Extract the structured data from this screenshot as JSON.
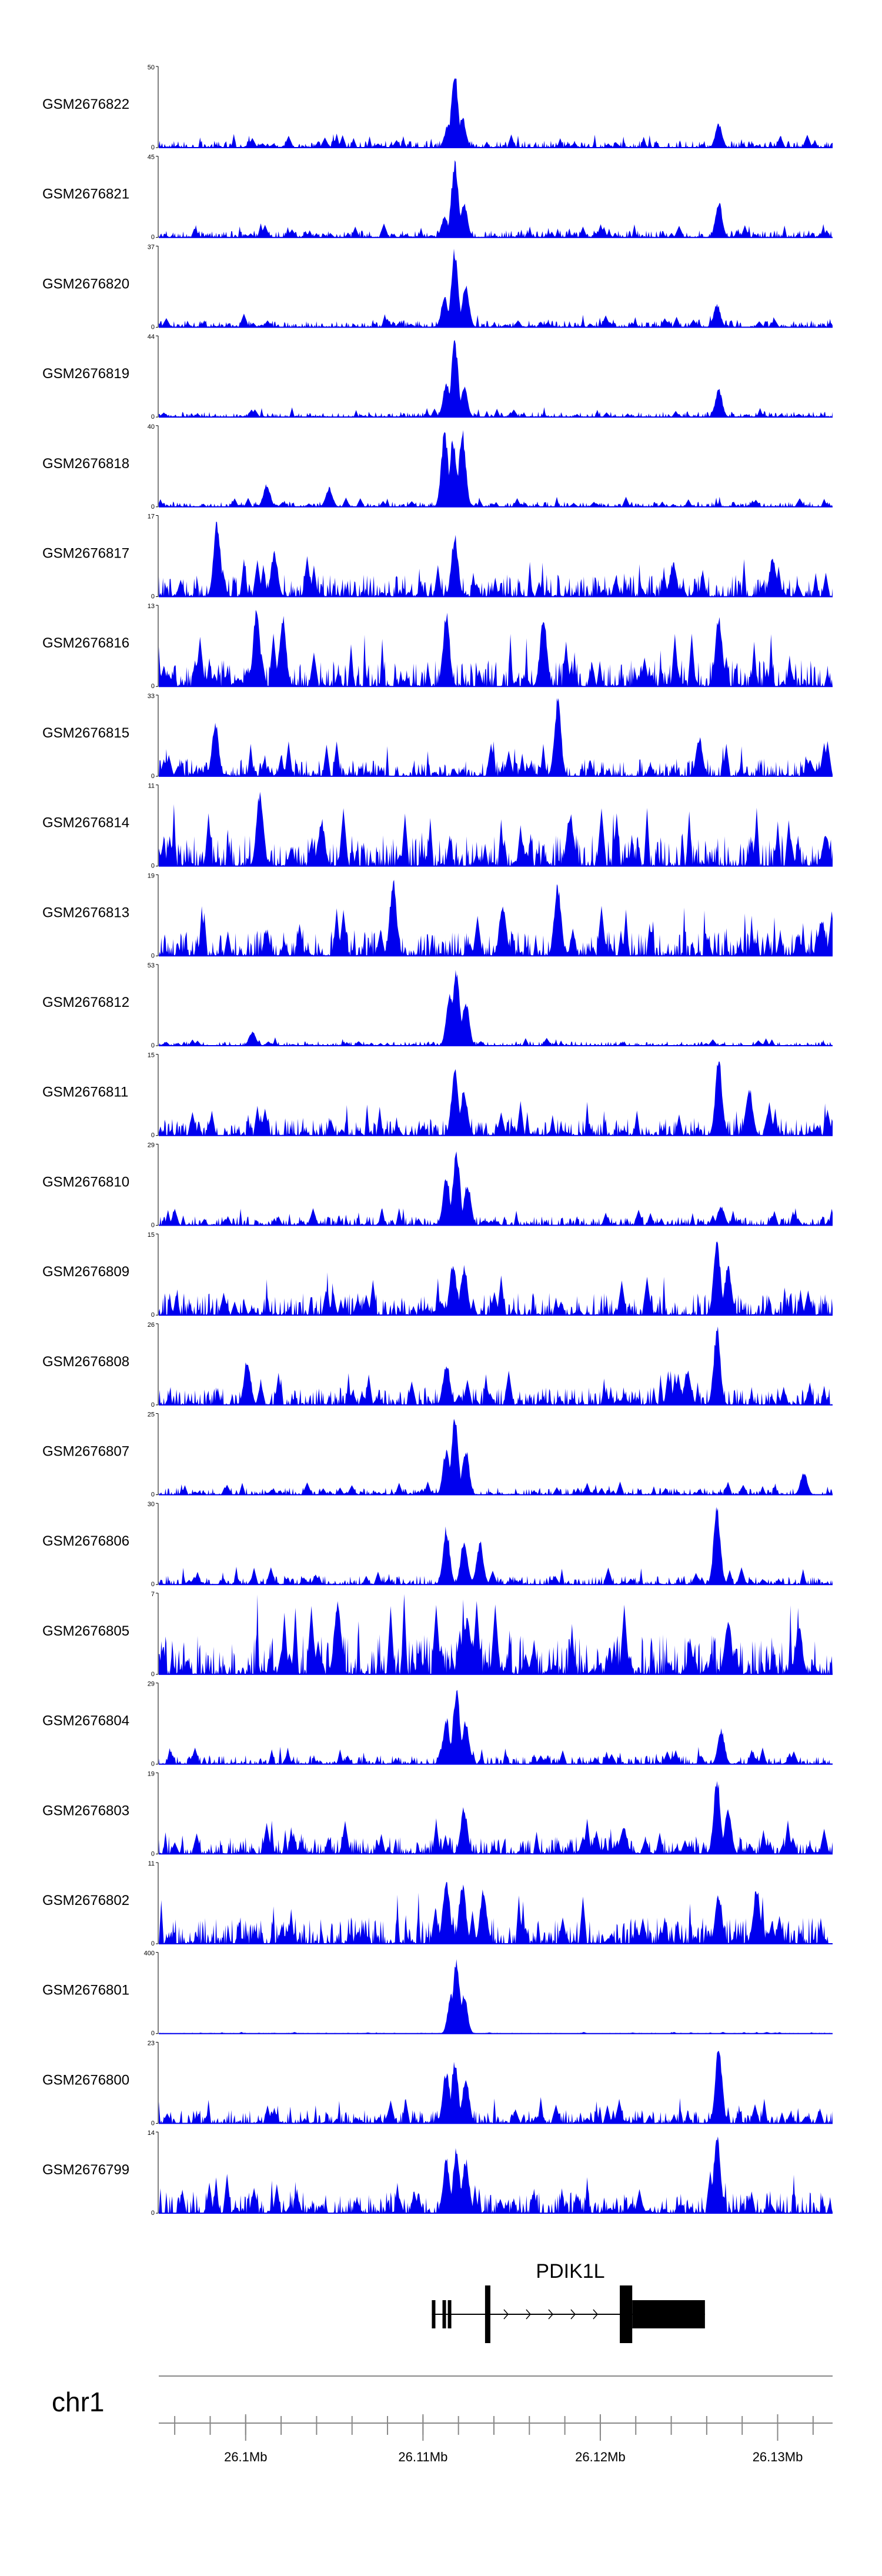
{
  "chart_data": {
    "type": "area",
    "title": "",
    "xlabel": "",
    "ylabel": "",
    "color": "#0000ee",
    "xlim_mb": [
      26.0951,
      26.1331
    ],
    "tracks": [
      {
        "name": "GSM2676822",
        "ymax": "50",
        "ymin": "0",
        "peaks": [
          [
            26.1114,
            30
          ],
          [
            26.1118,
            100
          ],
          [
            26.1122,
            40
          ],
          [
            26.1267,
            32
          ]
        ],
        "bg": 8
      },
      {
        "name": "GSM2676821",
        "ymax": "45",
        "ymin": "0",
        "peaks": [
          [
            26.1112,
            28
          ],
          [
            26.1118,
            100
          ],
          [
            26.1123,
            45
          ],
          [
            26.1267,
            48
          ]
        ],
        "bg": 8
      },
      {
        "name": "GSM2676820",
        "ymax": "37",
        "ymin": "0",
        "peaks": [
          [
            26.1112,
            40
          ],
          [
            26.1118,
            100
          ],
          [
            26.1124,
            55
          ],
          [
            26.1266,
            30
          ]
        ],
        "bg": 8
      },
      {
        "name": "GSM2676819",
        "ymax": "44",
        "ymin": "0",
        "peaks": [
          [
            26.1113,
            45
          ],
          [
            26.1118,
            100
          ],
          [
            26.1123,
            40
          ],
          [
            26.1267,
            38
          ]
        ],
        "bg": 6
      },
      {
        "name": "GSM2676818",
        "ymax": "40",
        "ymin": "0",
        "peaks": [
          [
            26.1112,
            100
          ],
          [
            26.1117,
            90
          ],
          [
            26.1122,
            100
          ],
          [
            26.1012,
            30
          ],
          [
            26.1047,
            25
          ]
        ],
        "bg": 6
      },
      {
        "name": "GSM2676817",
        "ymax": "17",
        "ymin": "0",
        "peaks": [
          [
            26.0984,
            100
          ],
          [
            26.1016,
            60
          ],
          [
            26.1118,
            80
          ],
          [
            26.1241,
            45
          ],
          [
            26.1297,
            50
          ]
        ],
        "bg": 25
      },
      {
        "name": "GSM2676816",
        "ymax": "13",
        "ymin": "0",
        "peaks": [
          [
            26.1006,
            100
          ],
          [
            26.1021,
            92
          ],
          [
            26.1113,
            95
          ],
          [
            26.1168,
            92
          ],
          [
            26.1267,
            92
          ]
        ],
        "bg": 30
      },
      {
        "name": "GSM2676815",
        "ymax": "33",
        "ymin": "0",
        "peaks": [
          [
            26.1176,
            100
          ],
          [
            26.0983,
            70
          ],
          [
            26.1256,
            50
          ],
          [
            26.1318,
            20
          ]
        ],
        "bg": 20
      },
      {
        "name": "GSM2676814",
        "ymax": "11",
        "ymin": "0",
        "peaks": [
          [
            26.1008,
            100
          ],
          [
            26.1183,
            70
          ],
          [
            26.1043,
            60
          ],
          [
            26.1327,
            40
          ]
        ],
        "bg": 35
      },
      {
        "name": "GSM2676813",
        "ymax": "19",
        "ymin": "0",
        "peaks": [
          [
            26.1083,
            100
          ],
          [
            26.1176,
            92
          ],
          [
            26.1145,
            70
          ],
          [
            26.1325,
            50
          ]
        ],
        "bg": 30
      },
      {
        "name": "GSM2676812",
        "ymax": "53",
        "ymin": "0",
        "peaks": [
          [
            26.1115,
            70
          ],
          [
            26.1119,
            100
          ],
          [
            26.1124,
            60
          ],
          [
            26.1004,
            18
          ]
        ],
        "bg": 5
      },
      {
        "name": "GSM2676811",
        "ymax": "15",
        "ymin": "0",
        "peaks": [
          [
            26.1267,
            100
          ],
          [
            26.1118,
            85
          ],
          [
            26.1284,
            65
          ],
          [
            26.1123,
            60
          ]
        ],
        "bg": 20
      },
      {
        "name": "GSM2676810",
        "ymax": "29",
        "ymin": "0",
        "peaks": [
          [
            26.1119,
            100
          ],
          [
            26.1113,
            65
          ],
          [
            26.1125,
            55
          ],
          [
            26.1268,
            25
          ]
        ],
        "bg": 10
      },
      {
        "name": "GSM2676809",
        "ymax": "15",
        "ymin": "0",
        "peaks": [
          [
            26.1266,
            100
          ],
          [
            26.1272,
            65
          ],
          [
            26.1117,
            70
          ],
          [
            26.1123,
            65
          ]
        ],
        "bg": 25
      },
      {
        "name": "GSM2676808",
        "ymax": "26",
        "ymin": "0",
        "peaks": [
          [
            26.1266,
            100
          ],
          [
            26.1001,
            60
          ],
          [
            26.1113,
            55
          ],
          [
            26.1249,
            45
          ]
        ],
        "bg": 20
      },
      {
        "name": "GSM2676807",
        "ymax": "25",
        "ymin": "0",
        "peaks": [
          [
            26.1118,
            100
          ],
          [
            26.1113,
            60
          ],
          [
            26.1124,
            60
          ],
          [
            26.1315,
            30
          ]
        ],
        "bg": 8
      },
      {
        "name": "GSM2676806",
        "ymax": "30",
        "ymin": "0",
        "peaks": [
          [
            26.1266,
            100
          ],
          [
            26.1113,
            75
          ],
          [
            26.1123,
            60
          ],
          [
            26.1132,
            55
          ]
        ],
        "bg": 10
      },
      {
        "name": "GSM2676805",
        "ymax": "7",
        "ymin": "0",
        "peaks": [
          [
            26.1052,
            100
          ],
          [
            26.1125,
            75
          ],
          [
            26.1272,
            75
          ],
          [
            26.1312,
            65
          ]
        ],
        "bg": 45
      },
      {
        "name": "GSM2676804",
        "ymax": "29",
        "ymin": "0",
        "peaks": [
          [
            26.1119,
            100
          ],
          [
            26.1113,
            60
          ],
          [
            26.1124,
            55
          ],
          [
            26.1268,
            45
          ]
        ],
        "bg": 10
      },
      {
        "name": "GSM2676803",
        "ymax": "19",
        "ymin": "0",
        "peaks": [
          [
            26.1266,
            100
          ],
          [
            26.1272,
            60
          ],
          [
            26.1123,
            60
          ],
          [
            26.1213,
            35
          ]
        ],
        "bg": 20
      },
      {
        "name": "GSM2676802",
        "ymax": "11",
        "ymin": "0",
        "peaks": [
          [
            26.1113,
            85
          ],
          [
            26.1122,
            80
          ],
          [
            26.1134,
            70
          ],
          [
            26.1267,
            65
          ],
          [
            26.1288,
            75
          ]
        ],
        "bg": 30
      },
      {
        "name": "GSM2676801",
        "ymax": "400",
        "ymin": "0",
        "peaks": [
          [
            26.1116,
            55
          ],
          [
            26.1119,
            100
          ],
          [
            26.1123,
            50
          ]
        ],
        "bg": 1
      },
      {
        "name": "GSM2676800",
        "ymax": "23",
        "ymin": "0",
        "peaks": [
          [
            26.1267,
            100
          ],
          [
            26.1113,
            70
          ],
          [
            26.1118,
            80
          ],
          [
            26.1124,
            60
          ]
        ],
        "bg": 15
      },
      {
        "name": "GSM2676799",
        "ymax": "14",
        "ymin": "0",
        "peaks": [
          [
            26.1266,
            100
          ],
          [
            26.1113,
            70
          ],
          [
            26.1119,
            85
          ],
          [
            26.1124,
            70
          ]
        ],
        "bg": 25
      }
    ],
    "gene": {
      "name": "PDIK1L",
      "strand": "+",
      "start_mb": 26.1105,
      "end_mb": 26.1259,
      "exons_mb": [
        [
          26.1105,
          26.1107
        ],
        [
          26.1111,
          26.1112
        ],
        [
          26.1114,
          26.1115
        ],
        [
          26.1135,
          26.1138
        ],
        [
          26.1211,
          26.1218
        ],
        [
          26.1218,
          26.1259
        ]
      ]
    },
    "chromosome": "chr1",
    "xticks_mb": [
      26.1,
      26.11,
      26.12,
      26.13
    ],
    "xtick_labels": [
      "26.1Mb",
      "26.11Mb",
      "26.12Mb",
      "26.13Mb"
    ],
    "minor_tick_step_mb": 0.002
  }
}
